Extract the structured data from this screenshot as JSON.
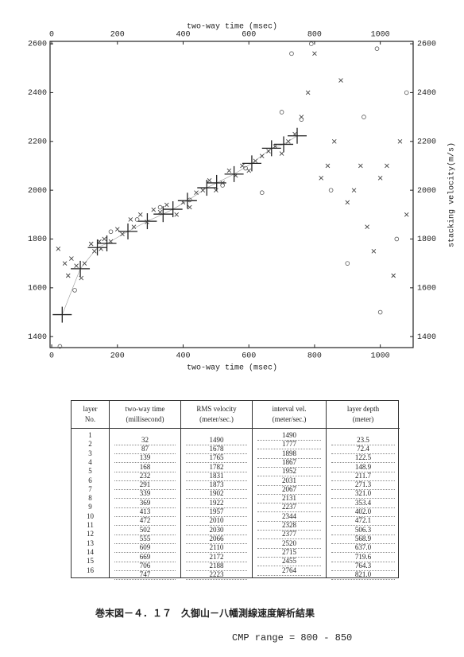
{
  "chart_data": {
    "type": "scatter",
    "xlabel": "two-way time (msec)",
    "ylabel": "stacking velocity(m/s)",
    "xlim": [
      -5,
      1100
    ],
    "ylim": [
      1355,
      2610
    ],
    "xticks": [
      0,
      200,
      400,
      600,
      800,
      1000
    ],
    "yticks": [
      1400,
      1600,
      1800,
      2000,
      2200,
      2400,
      2600
    ],
    "series": [
      {
        "marker": "+",
        "line": true,
        "color": "#222",
        "x": [
          32,
          87,
          139,
          168,
          232,
          291,
          339,
          369,
          413,
          472,
          502,
          555,
          609,
          669,
          706,
          747
        ],
        "values": [
          1490,
          1678,
          1765,
          1782,
          1831,
          1873,
          1902,
          1922,
          1957,
          2010,
          2030,
          2066,
          2110,
          2172,
          2188,
          2223
        ]
      },
      {
        "marker": "x",
        "color": "#444",
        "x": [
          20,
          40,
          50,
          60,
          75,
          90,
          100,
          120,
          130,
          145,
          150,
          160,
          180,
          200,
          215,
          240,
          250,
          270,
          290,
          310,
          330,
          350,
          380,
          400,
          420,
          440,
          460,
          480,
          500,
          520,
          540,
          560,
          580,
          600,
          620,
          640,
          660,
          680,
          700,
          720,
          740,
          760,
          780,
          800,
          820,
          840,
          860,
          880,
          900,
          920,
          940,
          960,
          980,
          1000,
          1020,
          1040,
          1060,
          1080
        ],
        "values": [
          1760,
          1700,
          1650,
          1720,
          1690,
          1640,
          1700,
          1780,
          1750,
          1790,
          1760,
          1800,
          1790,
          1840,
          1820,
          1880,
          1850,
          1900,
          1870,
          1920,
          1910,
          1940,
          1900,
          1950,
          1930,
          1990,
          2000,
          2040,
          2000,
          2030,
          2080,
          2060,
          2100,
          2080,
          2120,
          2140,
          2160,
          2180,
          2150,
          2200,
          2230,
          2300,
          2400,
          2560,
          2050,
          2100,
          2200,
          2450,
          1950,
          2000,
          2100,
          1850,
          1750,
          2050,
          2100,
          1650,
          2200,
          1900
        ]
      },
      {
        "marker": "o",
        "color": "#555",
        "x": [
          25,
          70,
          180,
          260,
          330,
          420,
          520,
          590,
          640,
          700,
          730,
          760,
          790,
          850,
          900,
          950,
          1000,
          1050,
          1080,
          990
        ],
        "values": [
          1360,
          1590,
          1830,
          1880,
          1930,
          1960,
          2020,
          2090,
          1990,
          2320,
          2560,
          2290,
          2600,
          2000,
          1700,
          2300,
          1500,
          1800,
          2400,
          2580
        ]
      }
    ]
  },
  "table": {
    "headers": [
      [
        "layer",
        "No."
      ],
      [
        "two-way time",
        "(millisecond)"
      ],
      [
        "RMS velocity",
        "(meter/sec.)"
      ],
      [
        "interval vel.",
        "(meter/sec.)"
      ],
      [
        "layer depth",
        "(meter)"
      ]
    ],
    "columns": [
      [
        1,
        2,
        3,
        4,
        5,
        6,
        7,
        8,
        9,
        10,
        11,
        12,
        13,
        14,
        15,
        16
      ],
      [
        32,
        87,
        139,
        168,
        232,
        291,
        339,
        369,
        413,
        472,
        502,
        555,
        609,
        669,
        706,
        747
      ],
      [
        1490,
        1678,
        1765,
        1782,
        1831,
        1873,
        1902,
        1922,
        1957,
        2010,
        2030,
        2066,
        2110,
        2172,
        2188,
        2223
      ],
      [
        1490,
        1777,
        1898,
        1867,
        1952,
        2031,
        2067,
        2131,
        2237,
        2344,
        2328,
        2377,
        2520,
        2715,
        2455,
        2764
      ],
      [
        "23.5",
        "72.4",
        "122.5",
        "148.9",
        "211.7",
        "271.3",
        "321.0",
        "353.4",
        "402.0",
        "472.1",
        "506.3",
        "568.9",
        "637.0",
        "719.6",
        "764.3",
        "821.0"
      ]
    ]
  },
  "caption": "巻末図－４．１７　久御山－八幡測線速度解析結果",
  "note": "CMP range = 800 - 850"
}
